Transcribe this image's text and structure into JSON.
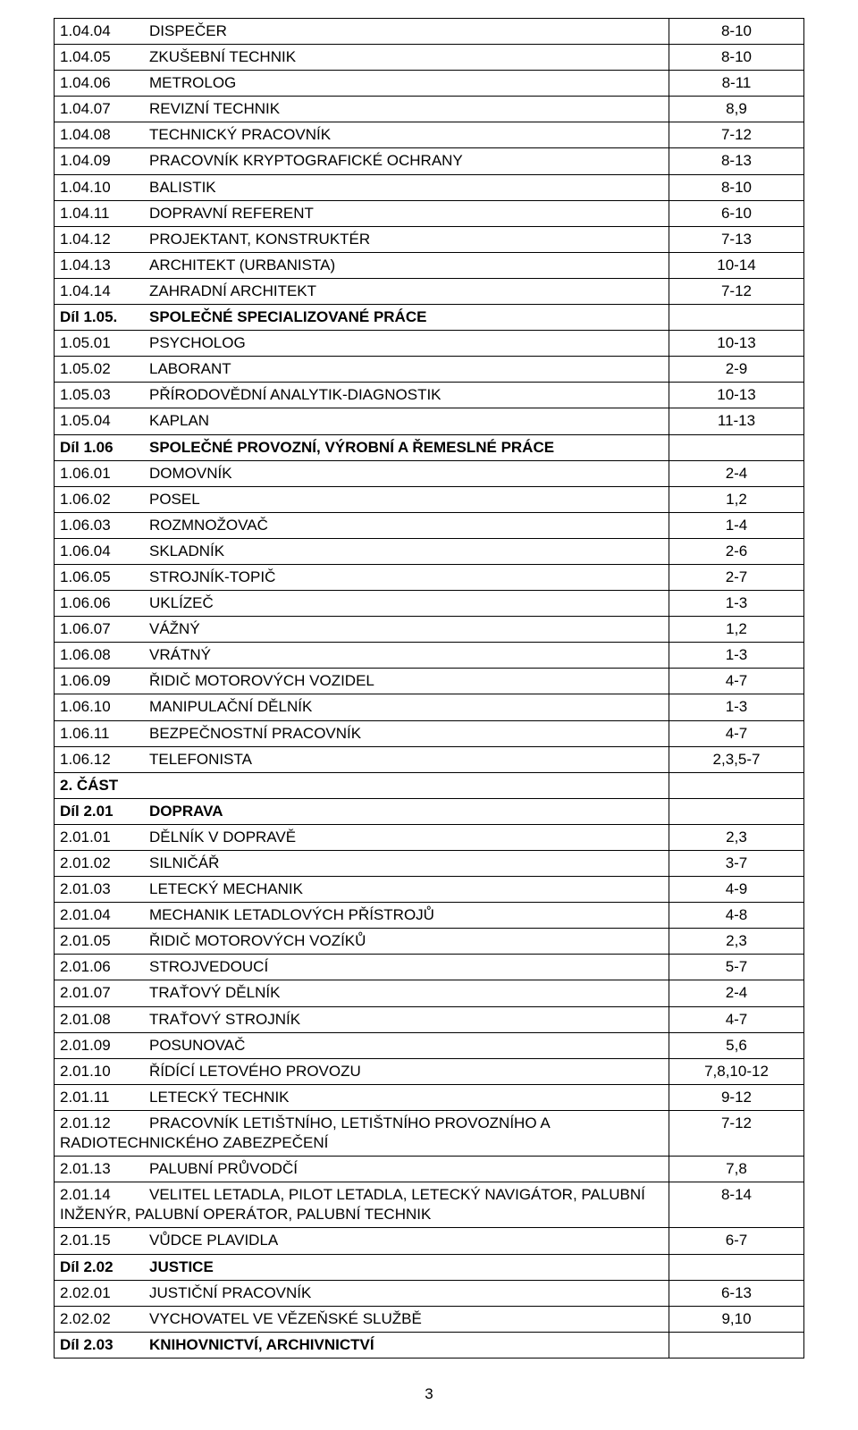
{
  "page_number": "3",
  "rows": [
    {
      "code": "1.04.04",
      "label": "DISPEČER",
      "val": "8-10"
    },
    {
      "code": "1.04.05",
      "label": "ZKUŠEBNÍ TECHNIK",
      "val": "8-10"
    },
    {
      "code": "1.04.06",
      "label": "METROLOG",
      "val": "8-11"
    },
    {
      "code": "1.04.07",
      "label": "REVIZNÍ  TECHNIK",
      "val": "8,9"
    },
    {
      "code": "1.04.08",
      "label": "TECHNICKÝ   PRACOVNÍK",
      "val": "7-12"
    },
    {
      "code": "1.04.09",
      "label": "PRACOVNÍK  KRYPTOGRAFICKÉ OCHRANY",
      "val": "8-13"
    },
    {
      "code": "1.04.10",
      "label": "BALISTIK",
      "val": "8-10"
    },
    {
      "code": "1.04.11",
      "label": "DOPRAVNÍ REFERENT",
      "val": "6-10"
    },
    {
      "code": "1.04.12",
      "label": "PROJEKTANT, KONSTRUKTÉR",
      "val": "7-13"
    },
    {
      "code": "1.04.13",
      "label": "ARCHITEKT (URBANISTA)",
      "val": "10-14"
    },
    {
      "code": "1.04.14",
      "label": "ZAHRADNÍ ARCHITEKT",
      "val": "7-12"
    },
    {
      "code": "Díl 1.05.",
      "label": "SPOLEČNÉ   SPECIALIZOVANÉ  PRÁCE",
      "val": "",
      "header": true
    },
    {
      "code": "1.05.01",
      "label": "PSYCHOLOG",
      "val": "10-13"
    },
    {
      "code": "1.05.02",
      "label": "LABORANT",
      "val": "2-9"
    },
    {
      "code": "1.05.03",
      "label": "PŘÍRODOVĚDNÍ ANALYTIK-DIAGNOSTIK",
      "val": "10-13"
    },
    {
      "code": "1.05.04",
      "label": "KAPLAN",
      "val": "11-13"
    },
    {
      "code": "Díl 1.06",
      "label": "SPOLEČNÉ  PROVOZNÍ, VÝROBNÍ A ŘEMESLNÉ PRÁCE",
      "val": "",
      "header": true
    },
    {
      "code": "1.06.01",
      "label": "DOMOVNÍK",
      "val": "2-4"
    },
    {
      "code": "1.06.02",
      "label": "POSEL",
      "val": "1,2"
    },
    {
      "code": "1.06.03",
      "label": "ROZMNOŽOVAČ",
      "val": "1-4"
    },
    {
      "code": "1.06.04",
      "label": "SKLADNÍK",
      "val": "2-6"
    },
    {
      "code": "1.06.05",
      "label": "STROJNÍK-TOPIČ",
      "val": "2-7"
    },
    {
      "code": "1.06.06",
      "label": "UKLÍZEČ",
      "val": "1-3"
    },
    {
      "code": "1.06.07",
      "label": "VÁŽNÝ",
      "val": "1,2"
    },
    {
      "code": "1.06.08",
      "label": "VRÁTNÝ",
      "val": "1-3"
    },
    {
      "code": "1.06.09",
      "label": "ŘIDIČ  MOTOROVÝCH VOZIDEL",
      "val": "4-7"
    },
    {
      "code": "1.06.10",
      "label": "MANIPULAČNÍ DĚLNÍK",
      "val": "1-3"
    },
    {
      "code": "1.06.11",
      "label": "BEZPEČNOSTNÍ  PRACOVNÍK",
      "val": "4-7"
    },
    {
      "code": "1.06.12",
      "label": "TELEFONISTA",
      "val": "2,3,5-7"
    },
    {
      "code": "2. ČÁST",
      "label": "",
      "val": "",
      "header": true,
      "single": true
    },
    {
      "code": "Díl 2.01",
      "label": "DOPRAVA",
      "val": "",
      "header": true
    },
    {
      "code": "2.01.01",
      "label": "DĚLNÍK V DOPRAVĚ",
      "val": "2,3"
    },
    {
      "code": "2.01.02",
      "label": "SILNIČÁŘ",
      "val": "3-7"
    },
    {
      "code": "2.01.03",
      "label": "LETECKÝ MECHANIK",
      "val": "4-9"
    },
    {
      "code": "2.01.04",
      "label": "MECHANIK LETADLOVÝCH PŘÍSTROJŮ",
      "val": "4-8"
    },
    {
      "code": "2.01.05",
      "label": "ŘIDIČ MOTOROVÝCH VOZÍKŮ",
      "val": "2,3"
    },
    {
      "code": "2.01.06",
      "label": "STROJVEDOUCÍ",
      "val": "5-7"
    },
    {
      "code": "2.01.07",
      "label": "TRAŤOVÝ DĚLNÍK",
      "val": "2-4"
    },
    {
      "code": "2.01.08",
      "label": "TRAŤOVÝ STROJNÍK",
      "val": "4-7"
    },
    {
      "code": "2.01.09",
      "label": "POSUNOVAČ",
      "val": "5,6"
    },
    {
      "code": "2.01.10",
      "label": "ŘÍDÍCÍ   LETOVÉHO  PROVOZU",
      "val": "7,8,10-12"
    },
    {
      "code": "2.01.11",
      "label": "LETECKÝ TECHNIK",
      "val": "9-12"
    },
    {
      "wrap": true,
      "code": "2.01.12",
      "label": "PRACOVNÍK LETIŠTNÍHO, LETIŠTNÍHO PROVOZNÍHO A",
      "cont": " RADIOTECHNICKÉHO ZABEZPEČENÍ",
      "val": "7-12"
    },
    {
      "code": "2.01.13",
      "label": "PALUBNÍ  PRŮVODČÍ",
      "val": "7,8"
    },
    {
      "wrap": true,
      "code": "2.01.14",
      "label": "VELITEL   LETADLA,  PILOT  LETADLA,  LETECKÝ  NAVIGÁTOR,  PALUBNÍ",
      "cont": "INŽENÝR, PALUBNÍ OPERÁTOR, PALUBNÍ TECHNIK",
      "val": "8-14"
    },
    {
      "code": "2.01.15",
      "label": "VŮDCE PLAVIDLA",
      "val": "6-7"
    },
    {
      "code": "Díl 2.02",
      "label": "JUSTICE",
      "val": "",
      "header": true
    },
    {
      "code": "2.02.01",
      "label": "JUSTIČNÍ PRACOVNÍK",
      "val": "6-13"
    },
    {
      "code": "2.02.02",
      "label": "VYCHOVATEL  VE   VĚZEŇSKÉ   SLUŽBĚ",
      "val": "9,10"
    },
    {
      "code": "Díl 2.03",
      "label": "KNIHOVNICTVÍ, ARCHIVNICTVÍ",
      "val": "",
      "header": true
    }
  ]
}
